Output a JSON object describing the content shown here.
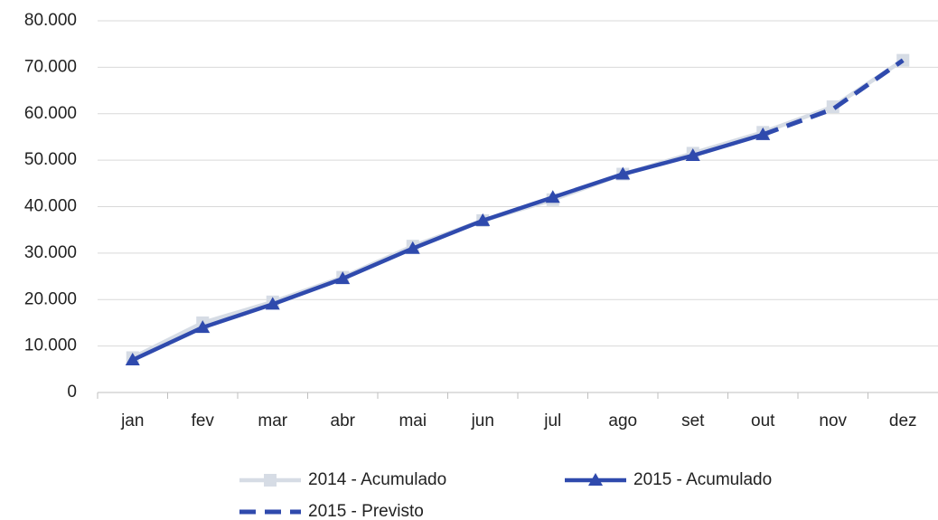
{
  "chart_data": {
    "type": "line",
    "categories": [
      "jan",
      "fev",
      "mar",
      "abr",
      "mai",
      "jun",
      "jul",
      "ago",
      "set",
      "out",
      "nov",
      "dez"
    ],
    "series": [
      {
        "name": "2014 - Acumulado",
        "color": "#d6dce5",
        "marker": "square",
        "dash": false,
        "values": [
          7500,
          15000,
          19500,
          24800,
          31500,
          37000,
          41500,
          47000,
          51500,
          56000,
          61500,
          71500
        ]
      },
      {
        "name": "2015 - Acumulado",
        "color": "#2f4aad",
        "marker": "triangle",
        "dash": false,
        "values": [
          7000,
          14000,
          19000,
          24500,
          31000,
          37000,
          42000,
          47000,
          51000,
          55500,
          null,
          null
        ]
      },
      {
        "name": "2015 - Previsto",
        "color": "#2f4aad",
        "marker": "none",
        "dash": true,
        "values": [
          null,
          null,
          null,
          null,
          null,
          null,
          null,
          null,
          null,
          55500,
          61000,
          71500
        ]
      }
    ],
    "ylim": [
      0,
      80000
    ],
    "yticks": [
      0,
      {
        "value": 10000,
        "label": "10.000"
      },
      {
        "value": 20000,
        "label": "20.000"
      },
      {
        "value": 30000,
        "label": "30.000"
      },
      {
        "value": 40000,
        "label": "40.000"
      },
      {
        "value": 50000,
        "label": "50.000"
      },
      {
        "value": 60000,
        "label": "60.000"
      },
      {
        "value": 70000,
        "label": "70.000"
      },
      {
        "value": 80000,
        "label": "80.000"
      }
    ],
    "grid": true,
    "legend": "bottom"
  }
}
